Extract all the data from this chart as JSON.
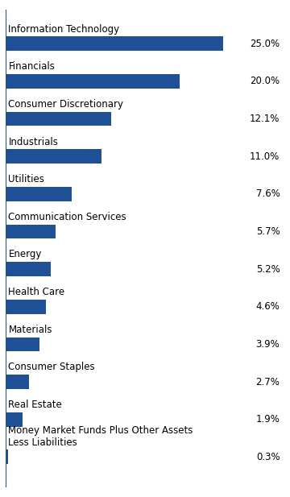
{
  "categories": [
    "Information Technology",
    "Financials",
    "Consumer Discretionary",
    "Industrials",
    "Utilities",
    "Communication Services",
    "Energy",
    "Health Care",
    "Materials",
    "Consumer Staples",
    "Real Estate",
    "Money Market Funds Plus Other Assets\nLess Liabilities"
  ],
  "values": [
    25.0,
    20.0,
    12.1,
    11.0,
    7.6,
    5.7,
    5.2,
    4.6,
    3.9,
    2.7,
    1.9,
    0.3
  ],
  "labels": [
    "25.0%",
    "20.0%",
    "12.1%",
    "11.0%",
    "7.6%",
    "5.7%",
    "5.2%",
    "4.6%",
    "3.9%",
    "2.7%",
    "1.9%",
    "0.3%"
  ],
  "bar_color": "#1F5096",
  "background_color": "#FFFFFF",
  "text_color": "#000000",
  "category_fontsize": 8.5,
  "value_fontsize": 8.5,
  "xlim": [
    0,
    32
  ],
  "bar_height": 0.38,
  "left_line_color": "#1F5096"
}
